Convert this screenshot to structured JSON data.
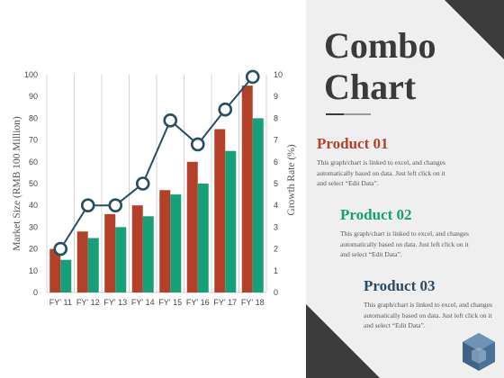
{
  "chart_data": {
    "type": "bar",
    "title": "",
    "xlabel": "",
    "ylabel": "Market Size (RMB 100 Million)",
    "y2label": "Growth Rate (%)",
    "categories": [
      "FY' 11",
      "FY' 12",
      "FY' 13",
      "FY' 14",
      "FY' 15",
      "FY' 16",
      "FY' 17",
      "FY' 18"
    ],
    "ylim": [
      0,
      100
    ],
    "y_ticks": [
      "0",
      "10",
      "20",
      "30",
      "40",
      "50",
      "60",
      "70",
      "80",
      "90",
      "100"
    ],
    "y2lim": [
      0,
      10
    ],
    "y2_ticks": [
      "0",
      "1",
      "2",
      "3",
      "4",
      "5",
      "6",
      "7",
      "8",
      "9",
      "10"
    ],
    "grid": "vertical",
    "series": [
      {
        "type": "bar",
        "values": [
          20,
          28,
          36,
          40,
          47,
          60,
          75,
          95
        ]
      },
      {
        "type": "bar",
        "values": [
          15,
          25,
          30,
          35,
          45,
          50,
          65,
          80
        ]
      },
      {
        "type": "line",
        "axis": "right",
        "values": [
          2,
          4,
          4,
          5,
          7.9,
          6.8,
          8.4,
          9.9
        ]
      }
    ]
  },
  "colors": {
    "bar_red": "#b5402a",
    "bar_green": "#16a079",
    "line_navy": "#264e63",
    "product_1": "#b5402a",
    "product_2": "#16a079",
    "product_3": "#2b4a63"
  },
  "panel": {
    "title": "Combo Chart",
    "products": [
      {
        "title": "Product 01",
        "description": "This graph/chart is linked to excel, and changes automatically based on data. Just left click on it and select “Edit Data”."
      },
      {
        "title": "Product 02",
        "description": "This graph/chart is linked to excel, and changes automatically based on data. Just left click on it and select “Edit Data”."
      },
      {
        "title": "Product 03",
        "description": "This graph/chart is linked to excel, and changes automatically based on data. Just left click on it and select “Edit Data”."
      }
    ],
    "logo_icon": "hexagon-logo-icon"
  }
}
